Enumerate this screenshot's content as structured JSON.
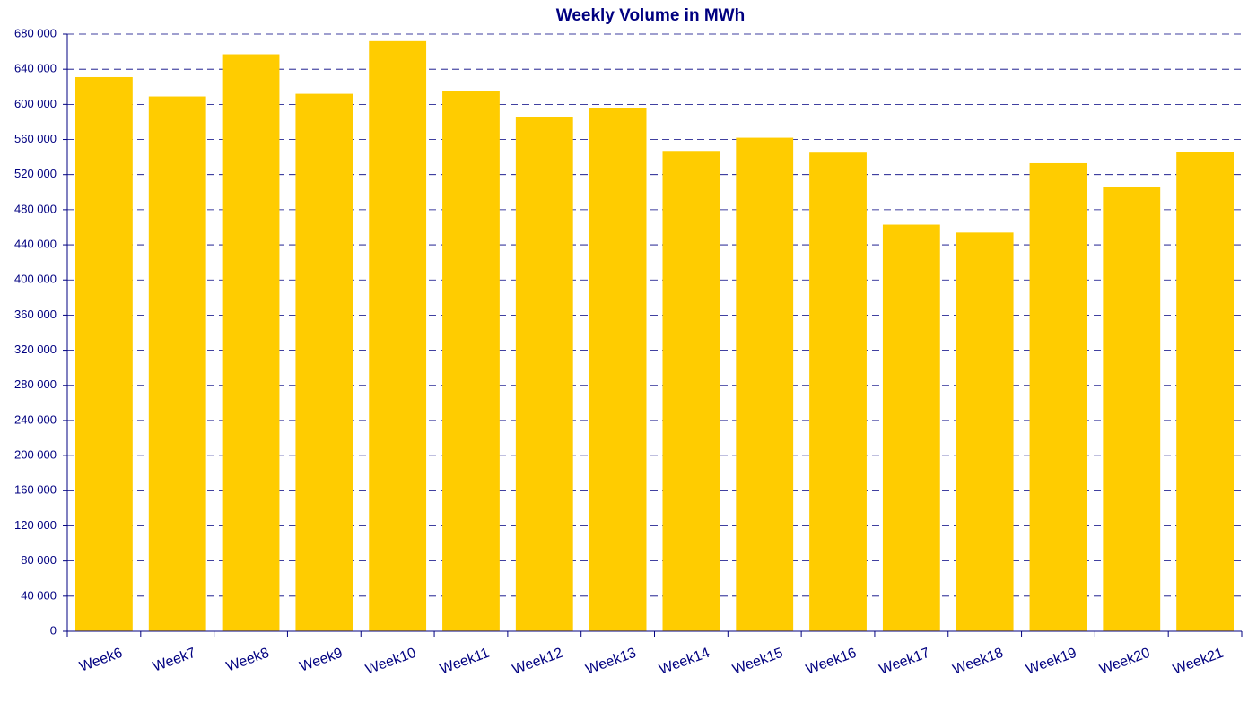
{
  "chart_data": {
    "type": "bar",
    "title": "Weekly Volume in MWh",
    "categories": [
      "Week6",
      "Week7",
      "Week8",
      "Week9",
      "Week10",
      "Week11",
      "Week12",
      "Week13",
      "Week14",
      "Week15",
      "Week16",
      "Week17",
      "Week18",
      "Week19",
      "Week20",
      "Week21"
    ],
    "values": [
      631000,
      609000,
      657000,
      612000,
      672000,
      615000,
      586000,
      596000,
      547000,
      562000,
      545000,
      463000,
      454000,
      533000,
      506000,
      546000
    ],
    "color": "#ffcc00",
    "ylim": [
      0,
      680000
    ],
    "yticks": [
      0,
      {
        "value": 40000,
        "label": "40 000"
      },
      {
        "value": 80000,
        "label": "80 000"
      },
      {
        "value": 120000,
        "label": "120 000"
      },
      {
        "value": 160000,
        "label": "160 000"
      },
      {
        "value": 200000,
        "label": "200 000"
      },
      {
        "value": 240000,
        "label": "240 000"
      },
      {
        "value": 280000,
        "label": "280 000"
      },
      {
        "value": 320000,
        "label": "320 000"
      },
      {
        "value": 360000,
        "label": "360 000"
      },
      {
        "value": 400000,
        "label": "400 000"
      },
      {
        "value": 440000,
        "label": "440 000"
      },
      {
        "value": 480000,
        "label": "480 000"
      },
      {
        "value": 520000,
        "label": "520 000"
      },
      {
        "value": 560000,
        "label": "560 000"
      },
      {
        "value": 600000,
        "label": "600 000"
      },
      {
        "value": 640000,
        "label": "640 000"
      },
      {
        "value": 680000,
        "label": "680 000"
      }
    ],
    "grid": true
  }
}
